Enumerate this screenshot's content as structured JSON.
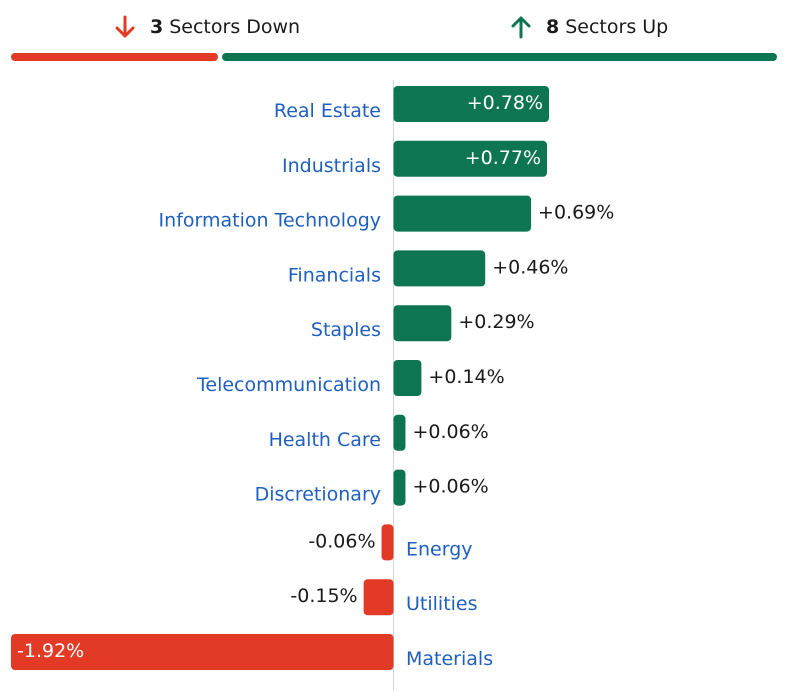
{
  "summary": {
    "down_count": "3",
    "down_label": "Sectors Down",
    "up_count": "8",
    "up_label": "Sectors Up"
  },
  "colors": {
    "positive": "#0e7552",
    "negative": "#e23a25",
    "label": "#1f5fbf",
    "axis": "#d6d6d6",
    "text": "#1a1a1a"
  },
  "icons": {
    "down": "arrow-down-icon",
    "up": "arrow-up-icon"
  },
  "chart_data": {
    "type": "bar",
    "orientation": "horizontal",
    "title": "",
    "xlabel": "",
    "ylabel": "",
    "unit": "%",
    "categories": [
      "Real Estate",
      "Industrials",
      "Information Technology",
      "Financials",
      "Staples",
      "Telecommunication",
      "Health Care",
      "Discretionary",
      "Energy",
      "Utilities",
      "Materials"
    ],
    "values": [
      0.78,
      0.77,
      0.69,
      0.46,
      0.29,
      0.14,
      0.06,
      0.06,
      -0.06,
      -0.15,
      -1.92
    ],
    "labels": [
      "+0.78%",
      "+0.77%",
      "+0.69%",
      "+0.46%",
      "+0.29%",
      "+0.14%",
      "+0.06%",
      "+0.06%",
      "-0.06%",
      "-0.15%",
      "-1.92%"
    ],
    "xlim": [
      -1.92,
      0.78
    ],
    "grid": false,
    "legend": "none"
  }
}
